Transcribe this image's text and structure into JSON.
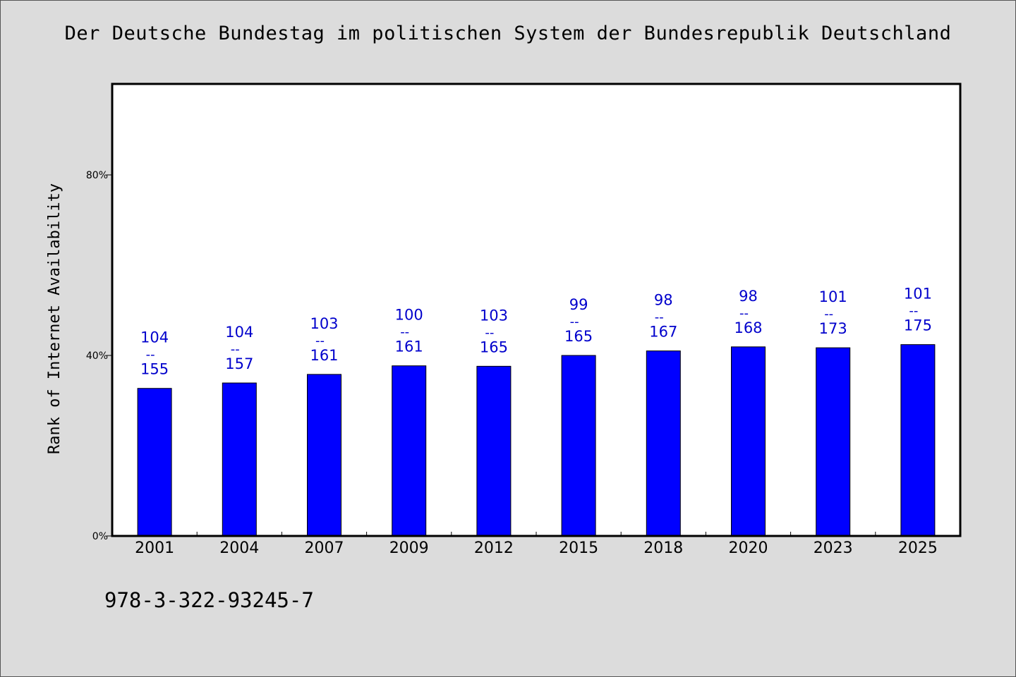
{
  "chart_data": {
    "type": "bar",
    "title": "Der Deutsche Bundestag im politischen System der Bundesrepublik Deutschland",
    "ylabel": "Rank of Internet Availability",
    "xlabel": "",
    "categories": [
      "2001",
      "2004",
      "2007",
      "2009",
      "2012",
      "2015",
      "2018",
      "2020",
      "2023",
      "2025"
    ],
    "values": [
      32.7,
      33.9,
      35.8,
      37.7,
      37.6,
      40.0,
      41.0,
      41.9,
      41.7,
      42.4
    ],
    "labels_top": [
      "104",
      "104",
      "103",
      "100",
      "103",
      "99",
      "98",
      "98",
      "101",
      "101"
    ],
    "labels_bottom": [
      "155",
      "157",
      "161",
      "161",
      "165",
      "165",
      "167",
      "168",
      "173",
      "175"
    ],
    "label_separator": "--",
    "ylim": [
      0,
      100
    ],
    "yticks": [
      0,
      40,
      80
    ],
    "ytick_labels": [
      "0%",
      "40%",
      "80%"
    ],
    "grid": false,
    "bar_color": "#0000ff",
    "label_color": "#0000cc"
  },
  "footer": {
    "isbn": "978-3-322-93245-7"
  },
  "colors": {
    "background": "#dcdcdc",
    "plot_background": "#ffffff"
  }
}
